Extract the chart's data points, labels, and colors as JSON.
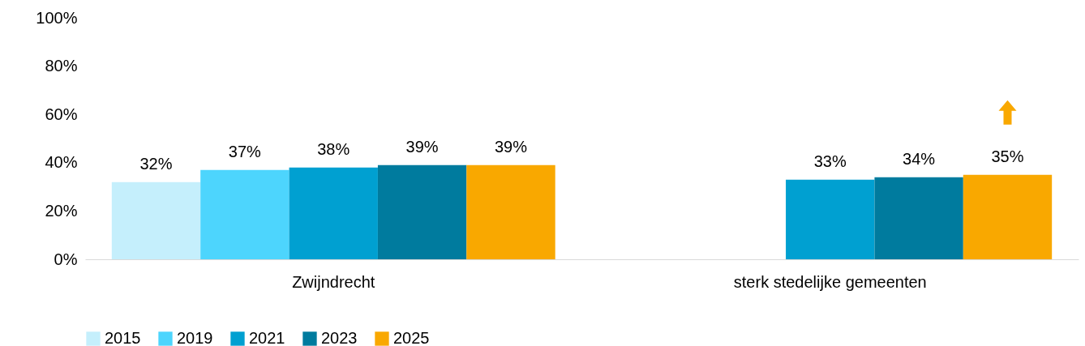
{
  "chart_data": {
    "type": "bar",
    "categories": [
      "Zwijndrecht",
      "sterk stedelijke gemeenten"
    ],
    "series": [
      {
        "name": "2015",
        "color": "#c5effc",
        "values": [
          32,
          null
        ],
        "value_labels": [
          "32%",
          null
        ]
      },
      {
        "name": "2019",
        "color": "#4dd5fd",
        "values": [
          37,
          null
        ],
        "value_labels": [
          "37%",
          null
        ]
      },
      {
        "name": "2021",
        "color": "#00a0d1",
        "values": [
          38,
          33
        ],
        "value_labels": [
          "38%",
          "33%"
        ]
      },
      {
        "name": "2023",
        "color": "#007b9e",
        "values": [
          39,
          34
        ],
        "value_labels": [
          "39%",
          "34%"
        ]
      },
      {
        "name": "2025",
        "color": "#f9a800",
        "values": [
          39,
          35
        ],
        "value_labels": [
          "39%",
          "35%"
        ]
      }
    ],
    "ylim": [
      0,
      100
    ],
    "yticks": [
      {
        "value": 0,
        "label": "0%"
      },
      {
        "value": 20,
        "label": "20%"
      },
      {
        "value": 40,
        "label": "40%"
      },
      {
        "value": 60,
        "label": "60%"
      },
      {
        "value": 80,
        "label": "80%"
      },
      {
        "value": 100,
        "label": "100%"
      }
    ],
    "grid": false,
    "legend": "bottom"
  }
}
